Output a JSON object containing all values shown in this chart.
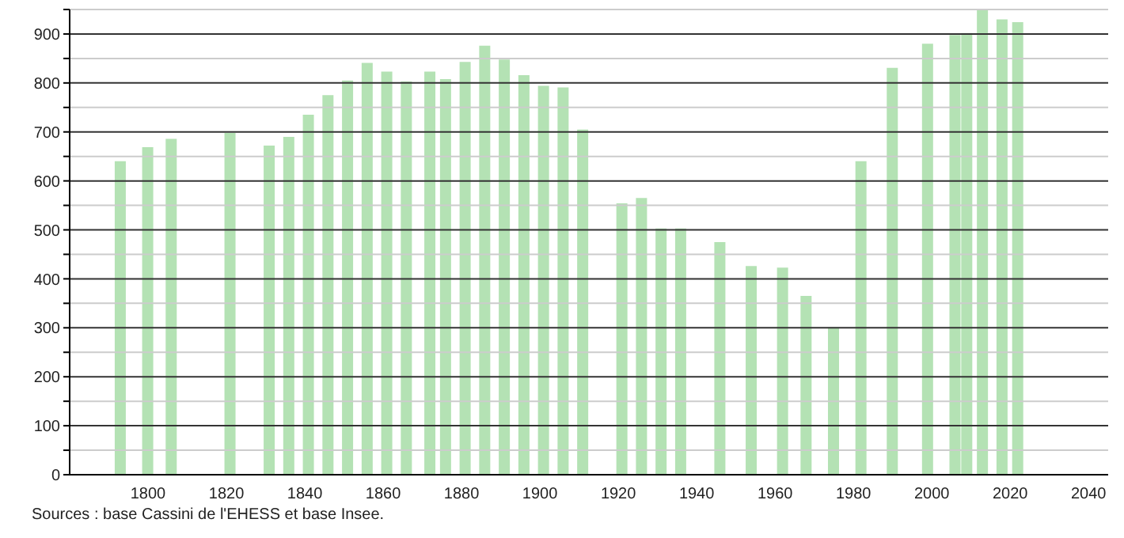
{
  "chart_data": {
    "type": "bar",
    "x": [
      1793,
      1800,
      1806,
      1821,
      1831,
      1836,
      1841,
      1846,
      1851,
      1856,
      1861,
      1866,
      1872,
      1876,
      1881,
      1886,
      1891,
      1896,
      1901,
      1906,
      1911,
      1921,
      1926,
      1931,
      1936,
      1946,
      1954,
      1962,
      1968,
      1975,
      1982,
      1990,
      1999,
      2006,
      2009,
      2013,
      2018,
      2022
    ],
    "values": [
      640,
      669,
      686,
      698,
      672,
      690,
      735,
      775,
      805,
      841,
      823,
      803,
      823,
      808,
      843,
      876,
      848,
      816,
      794,
      791,
      705,
      554,
      565,
      503,
      503,
      475,
      426,
      423,
      365,
      301,
      640,
      831,
      880,
      898,
      902,
      950,
      930,
      924
    ],
    "color": "#b4e2b4",
    "xlim": [
      1780,
      2045
    ],
    "xticks": [
      1800,
      1820,
      1840,
      1860,
      1880,
      1900,
      1920,
      1940,
      1960,
      1980,
      2000,
      2020,
      2040
    ],
    "ylim": [
      0,
      950
    ],
    "yticks": [
      0,
      {
        "value": 50,
        "label": null
      },
      100,
      {
        "value": 150,
        "label": null
      },
      200,
      {
        "value": 250,
        "label": null
      },
      300,
      {
        "value": 350,
        "label": null
      },
      400,
      {
        "value": 450,
        "label": null
      },
      500,
      {
        "value": 550,
        "label": null
      },
      600,
      {
        "value": 650,
        "label": null
      },
      700,
      {
        "value": 750,
        "label": null
      },
      800,
      {
        "value": 850,
        "label": null
      },
      900,
      {
        "value": 950,
        "label": null
      }
    ],
    "grid": "y",
    "annotations": [
      "Sources : base Cassini de l'EHESS et base Insee."
    ]
  }
}
